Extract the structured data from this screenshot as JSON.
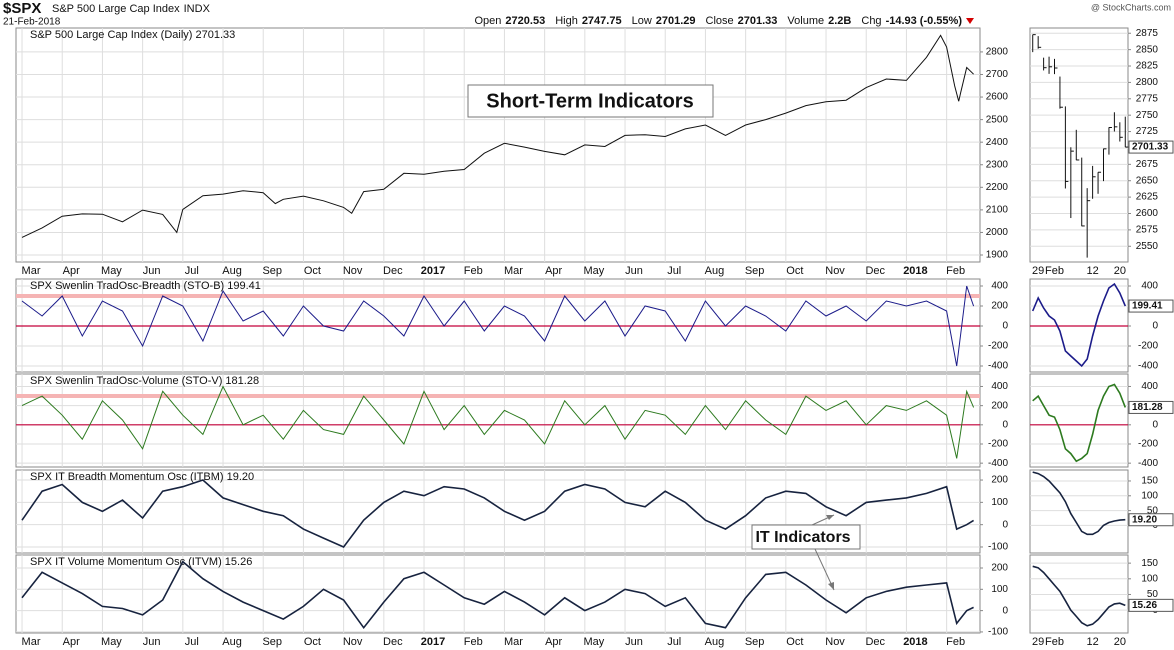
{
  "header": {
    "symbol": "$SPX",
    "name": "S&P 500 Large Cap Index",
    "exchange": "INDX",
    "date": "21-Feb-2018",
    "quote": [
      {
        "label": "Open",
        "value": 2720.53
      },
      {
        "label": "High",
        "value": 2747.75
      },
      {
        "label": "Low",
        "value": 2701.29
      },
      {
        "label": "Close",
        "value": 2701.33
      },
      {
        "label": "Volume",
        "value": "2.2B"
      },
      {
        "label": "Chg",
        "value": "-14.93 (-0.55%)"
      }
    ],
    "watermark": "@ StockCharts.com"
  },
  "annotations": [
    "Short-Term Indicators",
    "IT Indicators"
  ],
  "chart_data": [
    {
      "type": "line",
      "title": "S&P 500 Large Cap Index (Daily) 2701.33",
      "color": "#111111",
      "x": [
        0,
        0.5,
        1,
        1.5,
        2,
        2.5,
        3,
        3.5,
        3.85,
        4,
        4.5,
        5,
        5.5,
        6,
        6.3,
        6.5,
        7,
        7.5,
        8,
        8.2,
        8.5,
        9,
        9.5,
        10,
        10.5,
        11,
        11.5,
        12,
        12.5,
        13,
        13.5,
        14,
        14.5,
        15,
        15.5,
        16,
        16.5,
        17,
        17.5,
        18,
        18.5,
        19,
        19.5,
        20,
        20.5,
        21,
        21.5,
        22,
        22.5,
        22.85,
        23,
        23.2,
        23.3,
        23.35,
        23.5,
        23.67
      ],
      "values": [
        1978,
        2020,
        2072,
        2082,
        2081,
        2047,
        2099,
        2080,
        2000,
        2102,
        2163,
        2170,
        2185,
        2176,
        2128,
        2147,
        2161,
        2140,
        2111,
        2085,
        2181,
        2191,
        2262,
        2258,
        2271,
        2279,
        2351,
        2395,
        2378,
        2359,
        2344,
        2388,
        2381,
        2430,
        2433,
        2425,
        2459,
        2476,
        2430,
        2476,
        2500,
        2529,
        2562,
        2579,
        2586,
        2642,
        2680,
        2674,
        2776,
        2873,
        2822,
        2649,
        2581,
        2620,
        2731,
        2701.33
      ],
      "xlim": [
        -0.15,
        23.83
      ],
      "xticks": [
        {
          "value": 0,
          "label": "Mar"
        },
        {
          "value": 1,
          "label": "Apr"
        },
        {
          "value": 2,
          "label": "May"
        },
        {
          "value": 3,
          "label": "Jun"
        },
        {
          "value": 4,
          "label": "Jul"
        },
        {
          "value": 5,
          "label": "Aug"
        },
        {
          "value": 6,
          "label": "Sep"
        },
        {
          "value": 7,
          "label": "Oct"
        },
        {
          "value": 8,
          "label": "Nov"
        },
        {
          "value": 9,
          "label": "Dec"
        },
        {
          "value": 10,
          "label": "2017"
        },
        {
          "value": 11,
          "label": "Feb"
        },
        {
          "value": 12,
          "label": "Mar"
        },
        {
          "value": 13,
          "label": "Apr"
        },
        {
          "value": 14,
          "label": "May"
        },
        {
          "value": 15,
          "label": "Jun"
        },
        {
          "value": 16,
          "label": "Jul"
        },
        {
          "value": 17,
          "label": "Aug"
        },
        {
          "value": 18,
          "label": "Sep"
        },
        {
          "value": 19,
          "label": "Oct"
        },
        {
          "value": 20,
          "label": "Nov"
        },
        {
          "value": 21,
          "label": "Dec"
        },
        {
          "value": 22,
          "label": "2018"
        },
        {
          "value": 23,
          "label": "Feb"
        }
      ],
      "ylim": [
        1869,
        2906
      ],
      "yticks": [
        1900,
        2000,
        2100,
        2200,
        2300,
        2400,
        2500,
        2600,
        2700,
        2800
      ],
      "grid": true
    },
    {
      "type": "line",
      "title": "SPX Swenlin TradOsc-Breadth (STO-B) 199.41",
      "color": "#1c1c8a",
      "x": [
        0,
        0.5,
        1,
        1.5,
        2,
        2.5,
        3,
        3.5,
        4,
        4.5,
        5,
        5.5,
        6,
        6.5,
        7,
        7.5,
        8,
        8.5,
        9,
        9.5,
        10,
        10.5,
        11,
        11.5,
        12,
        12.5,
        13,
        13.5,
        14,
        14.5,
        15,
        15.5,
        16,
        16.5,
        17,
        17.5,
        18,
        18.5,
        19,
        19.5,
        20,
        20.5,
        21,
        21.5,
        22,
        22.5,
        23,
        23.25,
        23.5,
        23.67
      ],
      "values": [
        250,
        100,
        300,
        -100,
        250,
        150,
        -200,
        300,
        200,
        -150,
        350,
        50,
        150,
        -100,
        200,
        0,
        -50,
        250,
        100,
        -100,
        300,
        0,
        250,
        -50,
        200,
        100,
        -150,
        300,
        50,
        250,
        -100,
        200,
        150,
        -150,
        250,
        0,
        200,
        100,
        -50,
        250,
        100,
        200,
        50,
        250,
        200,
        250,
        150,
        -400,
        400,
        199.41
      ],
      "xlim": [
        -0.15,
        23.83
      ],
      "ylim": [
        -460,
        470
      ],
      "yticks": [
        400,
        200,
        0,
        -200,
        -400
      ],
      "grid": true,
      "reference_lines": [
        {
          "value": 0,
          "color": "#c4003a"
        },
        {
          "value": 300,
          "color": "#f5b4b4"
        }
      ]
    },
    {
      "type": "line",
      "title": "SPX Swenlin TradOsc-Volume (STO-V) 181.28",
      "color": "#2d7a1f",
      "x": [
        0,
        0.5,
        1,
        1.5,
        2,
        2.5,
        3,
        3.5,
        4,
        4.5,
        5,
        5.5,
        6,
        6.5,
        7,
        7.5,
        8,
        8.5,
        9,
        9.5,
        10,
        10.5,
        11,
        11.5,
        12,
        12.5,
        13,
        13.5,
        14,
        14.5,
        15,
        15.5,
        16,
        16.5,
        17,
        17.5,
        18,
        18.5,
        19,
        19.5,
        20,
        20.5,
        21,
        21.5,
        22,
        22.5,
        23,
        23.25,
        23.5,
        23.67
      ],
      "values": [
        200,
        300,
        100,
        -150,
        250,
        50,
        -250,
        350,
        100,
        -100,
        400,
        0,
        100,
        -150,
        150,
        -50,
        -100,
        300,
        50,
        -200,
        350,
        -50,
        200,
        -100,
        150,
        50,
        -200,
        250,
        0,
        200,
        -150,
        150,
        100,
        -100,
        200,
        -50,
        250,
        50,
        -100,
        300,
        150,
        250,
        0,
        200,
        150,
        250,
        100,
        -350,
        350,
        181.28
      ],
      "xlim": [
        -0.15,
        23.83
      ],
      "ylim": [
        -440,
        530
      ],
      "yticks": [
        400,
        200,
        0,
        -200,
        -400
      ],
      "grid": true,
      "reference_lines": [
        {
          "value": 0,
          "color": "#c4003a"
        },
        {
          "value": 300,
          "color": "#f5b4b4"
        }
      ]
    },
    {
      "type": "line",
      "title": "SPX IT Breadth Momentum Osc (ITBM) 19.20",
      "color": "#17233f",
      "x": [
        0,
        0.5,
        1,
        1.5,
        2,
        2.5,
        3,
        3.5,
        4,
        4.5,
        5,
        5.5,
        6,
        6.5,
        7,
        7.5,
        8,
        8.5,
        9,
        9.5,
        10,
        10.5,
        11,
        11.5,
        12,
        12.5,
        13,
        13.5,
        14,
        14.5,
        15,
        15.5,
        16,
        16.5,
        17,
        17.5,
        18,
        18.5,
        19,
        19.5,
        20,
        20.5,
        21,
        21.5,
        22,
        22.5,
        23,
        23.25,
        23.5,
        23.67
      ],
      "values": [
        20,
        150,
        180,
        100,
        60,
        110,
        30,
        150,
        170,
        200,
        120,
        90,
        60,
        40,
        -20,
        -60,
        -100,
        20,
        100,
        150,
        130,
        170,
        160,
        120,
        60,
        20,
        60,
        150,
        180,
        160,
        100,
        80,
        150,
        100,
        20,
        -20,
        40,
        120,
        150,
        140,
        80,
        40,
        100,
        110,
        120,
        140,
        170,
        -20,
        0,
        19.2
      ],
      "xlim": [
        -0.15,
        23.83
      ],
      "ylim": [
        -127,
        245
      ],
      "yticks": [
        200,
        100,
        0,
        -100
      ],
      "grid": true
    },
    {
      "type": "line",
      "title": "SPX IT Volume Momentum Osc (ITVM) 15.26",
      "color": "#17233f",
      "x": [
        0,
        0.5,
        1,
        1.5,
        2,
        2.5,
        3,
        3.5,
        4,
        4.5,
        5,
        5.5,
        6,
        6.5,
        7,
        7.5,
        8,
        8.5,
        9,
        9.5,
        10,
        10.5,
        11,
        11.5,
        12,
        12.5,
        13,
        13.5,
        14,
        14.5,
        15,
        15.5,
        16,
        16.5,
        17,
        17.5,
        18,
        18.5,
        19,
        19.5,
        20,
        20.5,
        21,
        21.5,
        22,
        22.5,
        23,
        23.25,
        23.5,
        23.67
      ],
      "values": [
        60,
        180,
        130,
        80,
        20,
        10,
        -20,
        50,
        230,
        150,
        90,
        40,
        0,
        -40,
        20,
        100,
        50,
        -80,
        40,
        150,
        180,
        120,
        60,
        30,
        90,
        40,
        -20,
        60,
        0,
        40,
        100,
        80,
        20,
        60,
        -60,
        -80,
        60,
        170,
        180,
        120,
        50,
        -10,
        60,
        90,
        110,
        120,
        130,
        -60,
        0,
        15.26
      ],
      "xlim": [
        -0.15,
        23.83
      ],
      "xticks": [
        {
          "value": 0,
          "label": "Mar"
        },
        {
          "value": 1,
          "label": "Apr"
        },
        {
          "value": 2,
          "label": "May"
        },
        {
          "value": 3,
          "label": "Jun"
        },
        {
          "value": 4,
          "label": "Jul"
        },
        {
          "value": 5,
          "label": "Aug"
        },
        {
          "value": 6,
          "label": "Sep"
        },
        {
          "value": 7,
          "label": "Oct"
        },
        {
          "value": 8,
          "label": "Nov"
        },
        {
          "value": 9,
          "label": "Dec"
        },
        {
          "value": 10,
          "label": "2017"
        },
        {
          "value": 11,
          "label": "Feb"
        },
        {
          "value": 12,
          "label": "Mar"
        },
        {
          "value": 13,
          "label": "Apr"
        },
        {
          "value": 14,
          "label": "May"
        },
        {
          "value": 15,
          "label": "Jun"
        },
        {
          "value": 16,
          "label": "Jul"
        },
        {
          "value": 17,
          "label": "Aug"
        },
        {
          "value": 18,
          "label": "Sep"
        },
        {
          "value": 19,
          "label": "Oct"
        },
        {
          "value": 20,
          "label": "Nov"
        },
        {
          "value": 21,
          "label": "Dec"
        },
        {
          "value": 22,
          "label": "2018"
        },
        {
          "value": 23,
          "label": "Feb"
        }
      ],
      "ylim": [
        -105,
        261
      ],
      "yticks": [
        200,
        100,
        0,
        -100
      ],
      "grid": true
    },
    {
      "type": "ohlc",
      "color": "#111111",
      "categories": [
        null,
        "29",
        null,
        null,
        "Feb",
        null,
        null,
        null,
        null,
        null,
        null,
        "12",
        null,
        null,
        null,
        null,
        "20",
        null
      ],
      "high": [
        2872.87,
        2870.62,
        2837.75,
        2839.26,
        2835.96,
        2808.92,
        2763.39,
        2701.04,
        2727.67,
        2685.27,
        2638.67,
        2672.61,
        2662.94,
        2699.01,
        2731.51,
        2754.42,
        2739.14,
        2747.75
      ],
      "low": [
        2846.18,
        2851.48,
        2818.27,
        2813.04,
        2812.7,
        2759.97,
        2638.17,
        2593.07,
        2681.33,
        2580.56,
        2532.69,
        2622.45,
        2630.07,
        2649.32,
        2689.82,
        2725.11,
        2709.79,
        2701.29
      ],
      "close": [
        2872.87,
        2853.53,
        2822.43,
        2823.81,
        2821.98,
        2762.13,
        2648.94,
        2695.14,
        2681.66,
        2581,
        2619.55,
        2656,
        2662.94,
        2698.63,
        2731.2,
        2732.22,
        2716.26,
        2701.33
      ],
      "last_label": "2701.33",
      "ylim": [
        2526,
        2883
      ],
      "yticks": [
        2550,
        2575,
        2600,
        2625,
        2650,
        2675,
        2700,
        2725,
        2750,
        2775,
        2800,
        2825,
        2850,
        2875
      ],
      "grid": true
    },
    {
      "type": "line",
      "color": "#1c1c8a",
      "values": [
        150,
        280,
        180,
        100,
        60,
        -50,
        -250,
        -300,
        -350,
        -400,
        -330,
        -100,
        100,
        250,
        380,
        420,
        330,
        199.41
      ],
      "last_label": "199.41",
      "ylim": [
        -460,
        470
      ],
      "yticks": [
        400,
        200,
        0,
        -200,
        -400
      ],
      "grid": true,
      "reference_lines": [
        {
          "value": 0,
          "color": "#c4003a"
        }
      ]
    },
    {
      "type": "line",
      "color": "#2d7a1f",
      "values": [
        250,
        300,
        200,
        100,
        80,
        -50,
        -250,
        -300,
        -380,
        -350,
        -300,
        -100,
        150,
        300,
        400,
        420,
        330,
        181.28
      ],
      "last_label": "181.28",
      "ylim": [
        -440,
        530
      ],
      "yticks": [
        400,
        200,
        0,
        -200,
        -400
      ],
      "grid": true,
      "reference_lines": [
        {
          "value": 0,
          "color": "#c4003a"
        }
      ]
    },
    {
      "type": "line",
      "color": "#17233f",
      "values": [
        180,
        175,
        165,
        150,
        130,
        110,
        80,
        40,
        10,
        -20,
        -30,
        -30,
        -20,
        0,
        10,
        15,
        18,
        19.2
      ],
      "last_label": "19.20",
      "ylim": [
        -93,
        187
      ],
      "yticks": [
        150,
        100,
        50,
        0
      ],
      "grid": true
    },
    {
      "type": "line",
      "color": "#17233f",
      "values": [
        140,
        135,
        120,
        100,
        80,
        60,
        30,
        0,
        -20,
        -40,
        -50,
        -45,
        -30,
        -10,
        10,
        20,
        22,
        15.26
      ],
      "categories": [
        null,
        "29",
        null,
        null,
        "Feb",
        null,
        null,
        null,
        null,
        null,
        null,
        "12",
        null,
        null,
        null,
        null,
        "20",
        null
      ],
      "last_label": "15.26",
      "ylim": [
        -73,
        176
      ],
      "yticks": [
        150,
        100,
        50,
        0
      ],
      "grid": true
    }
  ]
}
